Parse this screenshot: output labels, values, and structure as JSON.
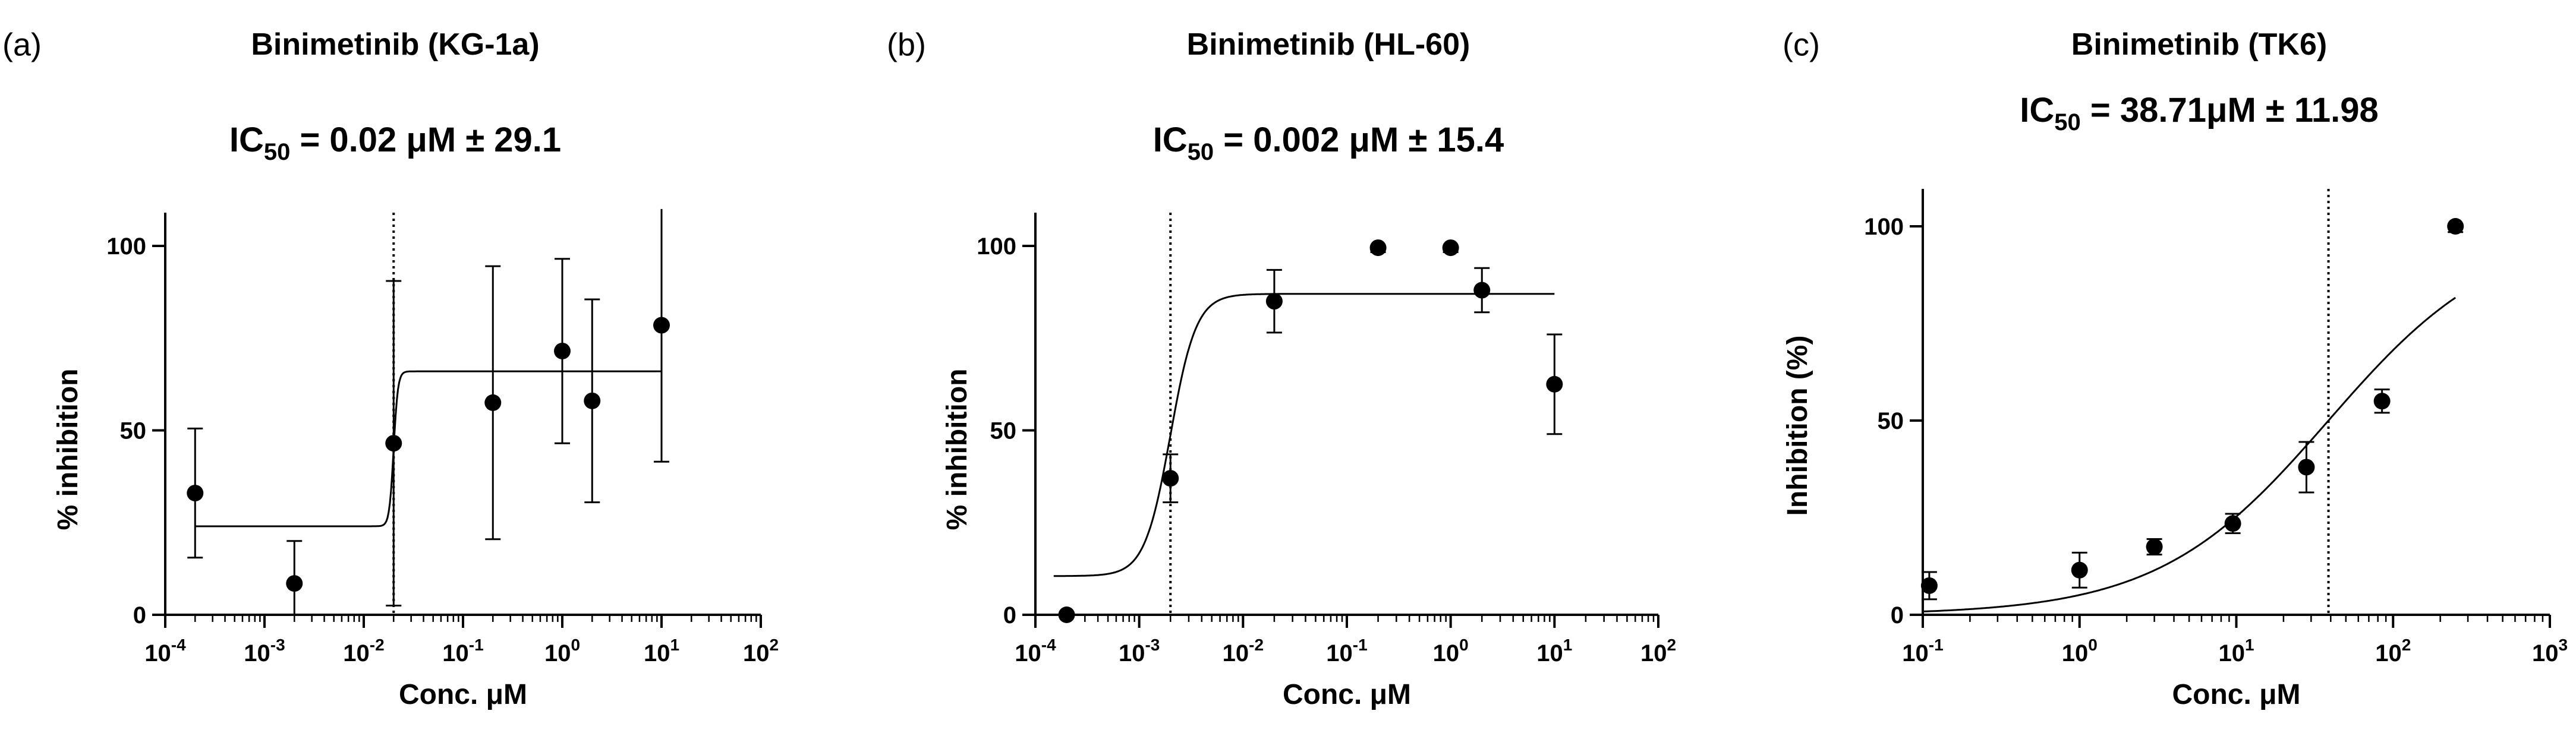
{
  "chart_data": [
    {
      "type": "scatter",
      "panel_label": "(a)",
      "title": "Binimetinib (KG-1a)",
      "ic50_value": "= 0.02 μM  ± 29.1",
      "xlabel": "Conc. μM",
      "ylabel": "% inhibition",
      "xscale": "log",
      "xlim": [
        0.0001,
        100
      ],
      "ylim": [
        0,
        100
      ],
      "y_ticks": [
        "0",
        "50",
        "100"
      ],
      "x_ticks": [
        {
          "base": "10",
          "exp": "-4"
        },
        {
          "base": "10",
          "exp": "-3"
        },
        {
          "base": "10",
          "exp": "-2"
        },
        {
          "base": "10",
          "exp": "-1"
        },
        {
          "base": "10",
          "exp": "0"
        },
        {
          "base": "10",
          "exp": "1"
        },
        {
          "base": "10",
          "exp": "2"
        }
      ],
      "ic50_line_x": 0.02,
      "points": [
        {
          "x": 0.0002,
          "y": 33,
          "err": 17.5
        },
        {
          "x": 0.002,
          "y": 8.5,
          "err": 11.5
        },
        {
          "x": 0.02,
          "y": 46.5,
          "err": 44
        },
        {
          "x": 0.2,
          "y": 57.5,
          "err": 37
        },
        {
          "x": 1,
          "y": 71.5,
          "err": 25
        },
        {
          "x": 2,
          "y": 58,
          "err": 27.5
        },
        {
          "x": 10,
          "y": 78.5,
          "err": 37
        }
      ],
      "fit": {
        "model": "step",
        "x_start": 0.0002,
        "x_end": 10,
        "bottom": 24,
        "top": 66,
        "x50": 0.02,
        "hill": 20
      }
    },
    {
      "type": "scatter",
      "panel_label": "(b)",
      "title": "Binimetinib (HL-60)",
      "ic50_value": "= 0.002 μM  ± 15.4",
      "xlabel": "Conc. μM",
      "ylabel": "% inhibition",
      "xscale": "log",
      "xlim": [
        0.0001,
        100
      ],
      "ylim": [
        0,
        100
      ],
      "y_ticks": [
        "0",
        "50",
        "100"
      ],
      "x_ticks": [
        {
          "base": "10",
          "exp": "-4"
        },
        {
          "base": "10",
          "exp": "-3"
        },
        {
          "base": "10",
          "exp": "-2"
        },
        {
          "base": "10",
          "exp": "-1"
        },
        {
          "base": "10",
          "exp": "0"
        },
        {
          "base": "10",
          "exp": "1"
        },
        {
          "base": "10",
          "exp": "2"
        }
      ],
      "ic50_line_x": 0.002,
      "points": [
        {
          "x": 0.0002,
          "y": 0,
          "err": 0
        },
        {
          "x": 0.002,
          "y": 37,
          "err": 6.5
        },
        {
          "x": 0.02,
          "y": 85,
          "err": 8.5
        },
        {
          "x": 0.2,
          "y": 99.5,
          "err": 1.2
        },
        {
          "x": 1,
          "y": 99.5,
          "err": 1.2
        },
        {
          "x": 2,
          "y": 88,
          "err": 6
        },
        {
          "x": 10,
          "y": 62.5,
          "err": 13.5
        }
      ],
      "fit": {
        "model": "hill",
        "x_start": 0.00015,
        "x_end": 10,
        "bottom": 10.5,
        "top": 87,
        "x50": 0.002,
        "hill": 3.5
      }
    },
    {
      "type": "scatter",
      "panel_label": "(c)",
      "title": "Binimetinib (TK6)",
      "ic50_value": "= 38.71μM ± 11.98",
      "xlabel": "Conc. μM",
      "ylabel": "Inhibition (%)",
      "xscale": "log",
      "xlim": [
        0.1,
        1000
      ],
      "ylim": [
        0,
        100
      ],
      "y_ticks": [
        "0",
        "50",
        "100"
      ],
      "x_ticks": [
        {
          "base": "10",
          "exp": "-1"
        },
        {
          "base": "10",
          "exp": "0"
        },
        {
          "base": "10",
          "exp": "1"
        },
        {
          "base": "10",
          "exp": "2"
        },
        {
          "base": "10",
          "exp": "3"
        }
      ],
      "ic50_line_x": 38.71,
      "points": [
        {
          "x": 0.11,
          "y": 7.5,
          "err": 3.5
        },
        {
          "x": 1.0,
          "y": 11.5,
          "err": 4.5
        },
        {
          "x": 3.0,
          "y": 17.5,
          "err": 2
        },
        {
          "x": 9.5,
          "y": 23.5,
          "err": 2.5
        },
        {
          "x": 28,
          "y": 38,
          "err": 6.5
        },
        {
          "x": 85,
          "y": 55,
          "err": 3
        },
        {
          "x": 250,
          "y": 100,
          "err": 1.5
        }
      ],
      "fit": {
        "model": "hill",
        "x_start": 0.1,
        "x_end": 250,
        "bottom": 0,
        "top": 100,
        "x50": 38.71,
        "hill": 0.8
      }
    }
  ]
}
